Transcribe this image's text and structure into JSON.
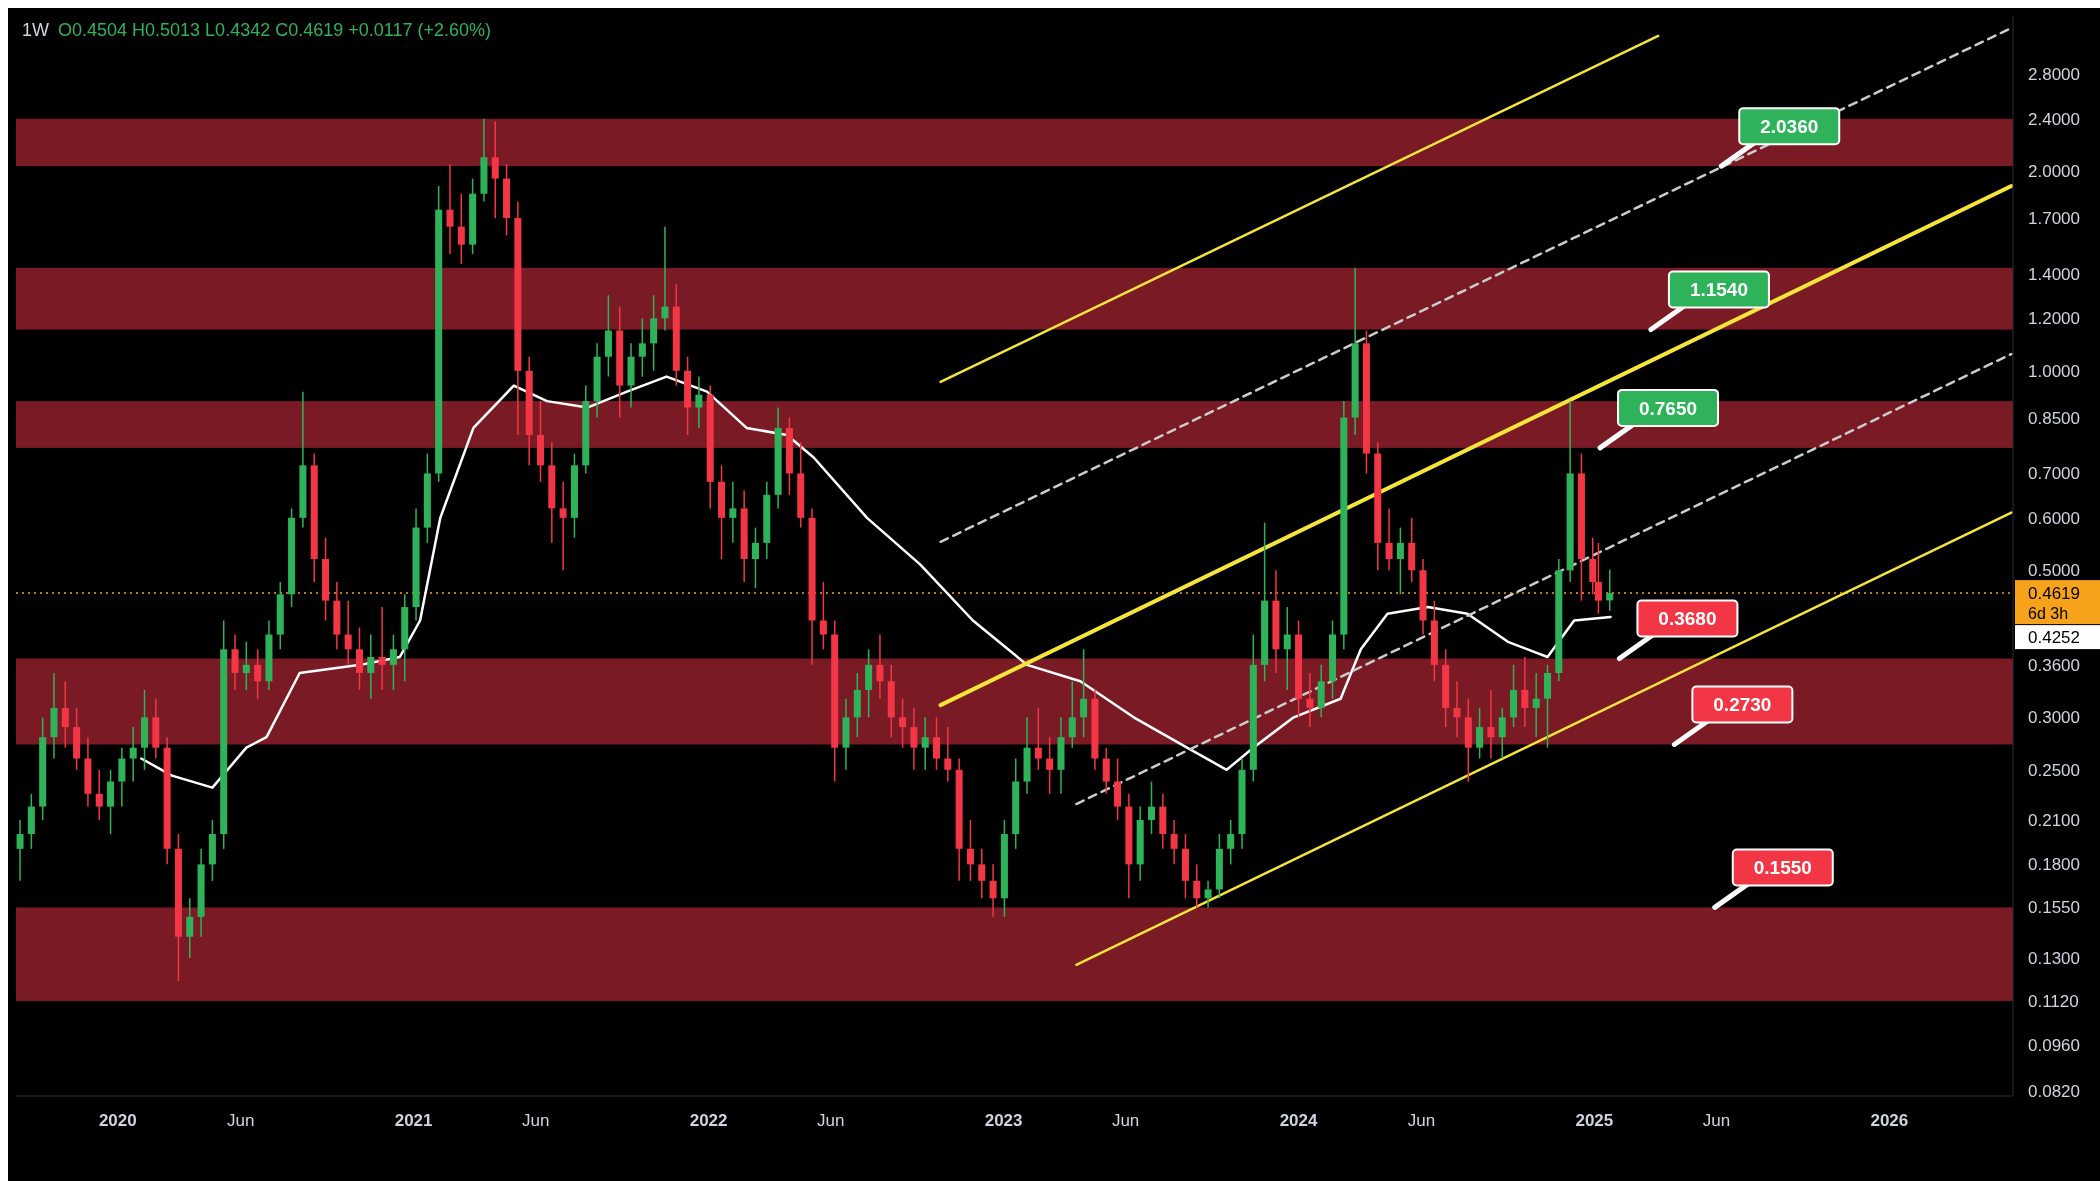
{
  "chart_data": {
    "type": "candlestick",
    "title": "1W",
    "subtitle": "O0.4504 H0.5013 L0.4342 C0.4619 +0.0117 (+2.60%)",
    "log": true,
    "grid": false,
    "colors": [
      "#2fb35a",
      "#2fb35a",
      "#2fb35a",
      "#2fb35a",
      "#f23645",
      "#f23645",
      "#f23645",
      "#f23645",
      "#2fb35a",
      "#2fb35a",
      "#2fb35a",
      "#2fb35a",
      "#f23645",
      "#f23645",
      "#f23645",
      "#2fb35a",
      "#2fb35a",
      "#2fb35a",
      "#2fb35a",
      "#f23645",
      "#2fb35a",
      "#f23645",
      "#2fb35a",
      "#2fb35a",
      "#2fb35a",
      "#2fb35a",
      "#f23645",
      "#f23645",
      "#f23645",
      "#f23645",
      "#f23645",
      "#2fb35a",
      "#f23645",
      "#2fb35a",
      "#2fb35a",
      "#2fb35a",
      "#2fb35a",
      "#2fb35a",
      "#f23645",
      "#f23645",
      "#2fb35a",
      "#2fb35a",
      "#f23645",
      "#f23645",
      "#f23645",
      "#f23645",
      "#f23645",
      "#f23645",
      "#f23645",
      "#2fb35a",
      "#2fb35a",
      "#2fb35a",
      "#2fb35a",
      "#f23645",
      "#2fb35a",
      "#2fb35a",
      "#2fb35a",
      "#2fb35a",
      "#f23645",
      "#f23645",
      "#2fb35a",
      "#f23645",
      "#f23645",
      "#2fb35a",
      "#f23645",
      "#2fb35a",
      "#2fb35a",
      "#2fb35a",
      "#f23645",
      "#f23645",
      "#f23645",
      "#f23645",
      "#f23645",
      "#2fb35a",
      "#2fb35a",
      "#2fb35a",
      "#f23645",
      "#f23645",
      "#f23645",
      "#f23645",
      "#2fb35a",
      "#f23645",
      "#f23645",
      "#f23645",
      "#f23645",
      "#f23645",
      "#f23645",
      "#2fb35a",
      "#2fb35a",
      "#2fb35a",
      "#f23645",
      "#f23645",
      "#2fb35a",
      "#2fb35a",
      "#2fb35a",
      "#f23645",
      "#f23645",
      "#f23645",
      "#f23645",
      "#2fb35a",
      "#2fb35a",
      "#f23645",
      "#f23645",
      "#f23645",
      "#f23645",
      "#2fb35a",
      "#2fb35a",
      "#2fb35a",
      "#2fb35a",
      "#2fb35a",
      "#2fb35a",
      "#f23645",
      "#2fb35a",
      "#f23645",
      "#f23645",
      "#2fb35a",
      "#2fb35a",
      "#2fb35a",
      "#2fb35a",
      "#f23645",
      "#f23645",
      "#f23645",
      "#2fb35a",
      "#f23645",
      "#f23645",
      "#f23645",
      "#f23645",
      "#f23645",
      "#f23645",
      "#2fb35a",
      "#f23645",
      "#2fb35a",
      "#2fb35a",
      "#f23645",
      "#2fb35a",
      "#2fb35a",
      "#2fb35a",
      "#2fb35a",
      "#f23645",
      "#f23645",
      "#f23645",
      "#2fb35a"
    ],
    "xlim": [
      "2019-08-28",
      "2026-06-03"
    ],
    "xticks": [
      {
        "value": "2020-01-01",
        "label": "2020"
      },
      {
        "value": "2020-06-01",
        "label": "Jun"
      },
      {
        "value": "2021-01-01",
        "label": "2021"
      },
      {
        "value": "2021-06-01",
        "label": "Jun"
      },
      {
        "value": "2022-01-01",
        "label": "2022"
      },
      {
        "value": "2022-06-01",
        "label": "Jun"
      },
      {
        "value": "2023-01-01",
        "label": "2023"
      },
      {
        "value": "2023-06-01",
        "label": "Jun"
      },
      {
        "value": "2024-01-01",
        "label": "2024"
      },
      {
        "value": "2024-06-01",
        "label": "Jun"
      },
      {
        "value": "2025-01-01",
        "label": "2025"
      },
      {
        "value": "2025-06-01",
        "label": "Jun"
      },
      {
        "value": "2026-01-01",
        "label": "2026"
      }
    ],
    "ylim": [
      0.0805,
      3.43
    ],
    "yticks": [
      {
        "value": 2.8,
        "label": "2.8000"
      },
      {
        "value": 2.4,
        "label": "2.4000"
      },
      {
        "value": 2.0,
        "label": "2.0000"
      },
      {
        "value": 1.7,
        "label": "1.7000"
      },
      {
        "value": 1.4,
        "label": "1.4000"
      },
      {
        "value": 1.2,
        "label": "1.2000"
      },
      {
        "value": 1.0,
        "label": "1.0000"
      },
      {
        "value": 0.85,
        "label": "0.8500"
      },
      {
        "value": 0.7,
        "label": "0.7000"
      },
      {
        "value": 0.6,
        "label": "0.6000"
      },
      {
        "value": 0.5,
        "label": "0.5000"
      },
      {
        "value": 0.36,
        "label": "0.3600"
      },
      {
        "value": 0.3,
        "label": "0.3000"
      },
      {
        "value": 0.25,
        "label": "0.2500"
      },
      {
        "value": 0.21,
        "label": "0.2100"
      },
      {
        "value": 0.18,
        "label": "0.1800"
      },
      {
        "value": 0.155,
        "label": "0.1550"
      },
      {
        "value": 0.13,
        "label": "0.1300"
      },
      {
        "value": 0.112,
        "label": "0.1120"
      },
      {
        "value": 0.096,
        "label": "0.0960"
      },
      {
        "value": 0.082,
        "label": "0.0820"
      }
    ],
    "x": [
      "2019-09-02",
      "2019-09-16",
      "2019-09-30",
      "2019-10-14",
      "2019-10-28",
      "2019-11-11",
      "2019-11-25",
      "2019-12-09",
      "2019-12-23",
      "2020-01-06",
      "2020-01-20",
      "2020-02-03",
      "2020-02-17",
      "2020-03-02",
      "2020-03-16",
      "2020-03-30",
      "2020-04-13",
      "2020-04-27",
      "2020-05-11",
      "2020-05-25",
      "2020-06-08",
      "2020-06-22",
      "2020-07-06",
      "2020-07-20",
      "2020-08-03",
      "2020-08-17",
      "2020-08-31",
      "2020-09-14",
      "2020-09-28",
      "2020-10-12",
      "2020-10-26",
      "2020-11-09",
      "2020-11-23",
      "2020-12-07",
      "2020-12-21",
      "2021-01-04",
      "2021-01-18",
      "2021-02-01",
      "2021-02-15",
      "2021-03-01",
      "2021-03-15",
      "2021-03-29",
      "2021-04-12",
      "2021-04-26",
      "2021-05-10",
      "2021-05-24",
      "2021-06-07",
      "2021-06-21",
      "2021-07-05",
      "2021-07-19",
      "2021-08-02",
      "2021-08-16",
      "2021-08-30",
      "2021-09-13",
      "2021-09-27",
      "2021-10-11",
      "2021-10-25",
      "2021-11-08",
      "2021-11-22",
      "2021-12-06",
      "2021-12-20",
      "2022-01-03",
      "2022-01-17",
      "2022-01-31",
      "2022-02-14",
      "2022-02-28",
      "2022-03-14",
      "2022-03-28",
      "2022-04-11",
      "2022-04-25",
      "2022-05-09",
      "2022-05-23",
      "2022-06-06",
      "2022-06-20",
      "2022-07-04",
      "2022-07-18",
      "2022-08-01",
      "2022-08-15",
      "2022-08-29",
      "2022-09-12",
      "2022-09-26",
      "2022-10-10",
      "2022-10-24",
      "2022-11-07",
      "2022-11-21",
      "2022-12-05",
      "2022-12-19",
      "2023-01-02",
      "2023-01-16",
      "2023-01-30",
      "2023-02-13",
      "2023-02-27",
      "2023-03-13",
      "2023-03-27",
      "2023-04-10",
      "2023-04-24",
      "2023-05-08",
      "2023-05-22",
      "2023-06-05",
      "2023-06-19",
      "2023-07-03",
      "2023-07-17",
      "2023-07-31",
      "2023-08-14",
      "2023-08-28",
      "2023-09-11",
      "2023-09-25",
      "2023-10-09",
      "2023-10-23",
      "2023-11-06",
      "2023-11-20",
      "2023-12-04",
      "2023-12-18",
      "2024-01-01",
      "2024-01-15",
      "2024-01-29",
      "2024-02-12",
      "2024-02-26",
      "2024-03-11",
      "2024-03-25",
      "2024-04-08",
      "2024-04-22",
      "2024-05-06",
      "2024-05-20",
      "2024-06-03",
      "2024-06-17",
      "2024-07-01",
      "2024-07-15",
      "2024-07-29",
      "2024-08-12",
      "2024-08-26",
      "2024-09-09",
      "2024-09-23",
      "2024-10-07",
      "2024-10-21",
      "2024-11-04",
      "2024-11-18",
      "2024-12-02",
      "2024-12-16",
      "2024-12-30",
      "2025-01-06",
      "2025-01-20"
    ],
    "ohlc": [
      [
        0.19,
        0.21,
        0.17,
        0.2
      ],
      [
        0.2,
        0.23,
        0.19,
        0.22
      ],
      [
        0.22,
        0.3,
        0.21,
        0.28
      ],
      [
        0.28,
        0.35,
        0.26,
        0.31
      ],
      [
        0.31,
        0.34,
        0.27,
        0.29
      ],
      [
        0.29,
        0.31,
        0.25,
        0.26
      ],
      [
        0.26,
        0.28,
        0.22,
        0.23
      ],
      [
        0.23,
        0.25,
        0.21,
        0.22
      ],
      [
        0.22,
        0.25,
        0.2,
        0.24
      ],
      [
        0.24,
        0.27,
        0.22,
        0.26
      ],
      [
        0.26,
        0.29,
        0.24,
        0.27
      ],
      [
        0.27,
        0.33,
        0.25,
        0.3
      ],
      [
        0.3,
        0.32,
        0.26,
        0.27
      ],
      [
        0.27,
        0.28,
        0.18,
        0.19
      ],
      [
        0.19,
        0.2,
        0.12,
        0.14
      ],
      [
        0.14,
        0.16,
        0.13,
        0.15
      ],
      [
        0.15,
        0.19,
        0.14,
        0.18
      ],
      [
        0.18,
        0.21,
        0.17,
        0.2
      ],
      [
        0.2,
        0.42,
        0.19,
        0.38
      ],
      [
        0.38,
        0.4,
        0.33,
        0.35
      ],
      [
        0.35,
        0.39,
        0.33,
        0.36
      ],
      [
        0.36,
        0.38,
        0.32,
        0.34
      ],
      [
        0.34,
        0.42,
        0.33,
        0.4
      ],
      [
        0.4,
        0.48,
        0.38,
        0.46
      ],
      [
        0.46,
        0.62,
        0.44,
        0.6
      ],
      [
        0.6,
        0.93,
        0.58,
        0.72
      ],
      [
        0.72,
        0.75,
        0.48,
        0.52
      ],
      [
        0.52,
        0.56,
        0.42,
        0.45
      ],
      [
        0.45,
        0.48,
        0.38,
        0.4
      ],
      [
        0.4,
        0.45,
        0.36,
        0.38
      ],
      [
        0.38,
        0.41,
        0.33,
        0.35
      ],
      [
        0.35,
        0.4,
        0.32,
        0.37
      ],
      [
        0.37,
        0.44,
        0.33,
        0.36
      ],
      [
        0.36,
        0.4,
        0.33,
        0.38
      ],
      [
        0.38,
        0.46,
        0.34,
        0.44
      ],
      [
        0.44,
        0.62,
        0.42,
        0.58
      ],
      [
        0.58,
        0.75,
        0.55,
        0.7
      ],
      [
        0.7,
        1.9,
        0.68,
        1.75
      ],
      [
        1.75,
        2.05,
        1.5,
        1.65
      ],
      [
        1.65,
        1.85,
        1.45,
        1.55
      ],
      [
        1.55,
        1.95,
        1.5,
        1.85
      ],
      [
        1.85,
        2.4,
        1.8,
        2.1
      ],
      [
        2.1,
        2.38,
        1.7,
        1.95
      ],
      [
        1.95,
        2.05,
        1.6,
        1.7
      ],
      [
        1.7,
        1.8,
        0.8,
        1.0
      ],
      [
        1.0,
        1.05,
        0.72,
        0.8
      ],
      [
        0.8,
        0.9,
        0.68,
        0.72
      ],
      [
        0.72,
        0.78,
        0.55,
        0.62
      ],
      [
        0.62,
        0.68,
        0.5,
        0.6
      ],
      [
        0.6,
        0.75,
        0.56,
        0.72
      ],
      [
        0.72,
        0.95,
        0.7,
        0.9
      ],
      [
        0.9,
        1.1,
        0.85,
        1.05
      ],
      [
        1.05,
        1.3,
        0.98,
        1.15
      ],
      [
        1.15,
        1.25,
        0.85,
        0.95
      ],
      [
        0.95,
        1.1,
        0.88,
        1.05
      ],
      [
        1.05,
        1.2,
        0.98,
        1.1
      ],
      [
        1.1,
        1.3,
        1.0,
        1.2
      ],
      [
        1.2,
        1.65,
        1.15,
        1.25
      ],
      [
        1.25,
        1.35,
        0.95,
        1.0
      ],
      [
        1.0,
        1.05,
        0.8,
        0.88
      ],
      [
        0.88,
        0.98,
        0.82,
        0.92
      ],
      [
        0.92,
        0.95,
        0.62,
        0.68
      ],
      [
        0.68,
        0.72,
        0.52,
        0.6
      ],
      [
        0.6,
        0.68,
        0.55,
        0.62
      ],
      [
        0.62,
        0.66,
        0.48,
        0.52
      ],
      [
        0.52,
        0.58,
        0.47,
        0.55
      ],
      [
        0.55,
        0.68,
        0.52,
        0.65
      ],
      [
        0.65,
        0.88,
        0.62,
        0.82
      ],
      [
        0.82,
        0.85,
        0.65,
        0.7
      ],
      [
        0.7,
        0.78,
        0.58,
        0.6
      ],
      [
        0.6,
        0.62,
        0.36,
        0.42
      ],
      [
        0.42,
        0.48,
        0.38,
        0.4
      ],
      [
        0.4,
        0.42,
        0.24,
        0.27
      ],
      [
        0.27,
        0.32,
        0.25,
        0.3
      ],
      [
        0.3,
        0.35,
        0.28,
        0.33
      ],
      [
        0.33,
        0.38,
        0.3,
        0.36
      ],
      [
        0.36,
        0.4,
        0.32,
        0.34
      ],
      [
        0.34,
        0.36,
        0.28,
        0.3
      ],
      [
        0.3,
        0.32,
        0.27,
        0.29
      ],
      [
        0.29,
        0.31,
        0.25,
        0.27
      ],
      [
        0.27,
        0.3,
        0.25,
        0.28
      ],
      [
        0.28,
        0.3,
        0.25,
        0.26
      ],
      [
        0.26,
        0.29,
        0.24,
        0.25
      ],
      [
        0.25,
        0.26,
        0.17,
        0.19
      ],
      [
        0.19,
        0.21,
        0.17,
        0.18
      ],
      [
        0.18,
        0.19,
        0.16,
        0.17
      ],
      [
        0.17,
        0.18,
        0.15,
        0.16
      ],
      [
        0.16,
        0.21,
        0.15,
        0.2
      ],
      [
        0.2,
        0.26,
        0.19,
        0.24
      ],
      [
        0.24,
        0.3,
        0.23,
        0.27
      ],
      [
        0.27,
        0.31,
        0.25,
        0.26
      ],
      [
        0.26,
        0.28,
        0.23,
        0.25
      ],
      [
        0.25,
        0.3,
        0.23,
        0.28
      ],
      [
        0.28,
        0.34,
        0.27,
        0.3
      ],
      [
        0.3,
        0.38,
        0.28,
        0.32
      ],
      [
        0.32,
        0.33,
        0.25,
        0.26
      ],
      [
        0.26,
        0.27,
        0.23,
        0.24
      ],
      [
        0.24,
        0.26,
        0.21,
        0.22
      ],
      [
        0.22,
        0.23,
        0.16,
        0.18
      ],
      [
        0.18,
        0.22,
        0.17,
        0.21
      ],
      [
        0.21,
        0.24,
        0.2,
        0.22
      ],
      [
        0.22,
        0.23,
        0.19,
        0.2
      ],
      [
        0.2,
        0.21,
        0.18,
        0.19
      ],
      [
        0.19,
        0.2,
        0.16,
        0.17
      ],
      [
        0.17,
        0.18,
        0.155,
        0.16
      ],
      [
        0.16,
        0.17,
        0.155,
        0.165
      ],
      [
        0.165,
        0.2,
        0.16,
        0.19
      ],
      [
        0.19,
        0.21,
        0.18,
        0.2
      ],
      [
        0.2,
        0.26,
        0.19,
        0.25
      ],
      [
        0.25,
        0.4,
        0.24,
        0.36
      ],
      [
        0.36,
        0.59,
        0.34,
        0.45
      ],
      [
        0.45,
        0.5,
        0.35,
        0.38
      ],
      [
        0.38,
        0.44,
        0.33,
        0.4
      ],
      [
        0.4,
        0.42,
        0.3,
        0.32
      ],
      [
        0.32,
        0.35,
        0.29,
        0.31
      ],
      [
        0.31,
        0.36,
        0.3,
        0.34
      ],
      [
        0.34,
        0.42,
        0.32,
        0.4
      ],
      [
        0.4,
        0.9,
        0.38,
        0.85
      ],
      [
        0.85,
        1.43,
        0.8,
        1.1
      ],
      [
        1.1,
        1.15,
        0.7,
        0.75
      ],
      [
        0.75,
        0.78,
        0.5,
        0.55
      ],
      [
        0.55,
        0.62,
        0.5,
        0.52
      ],
      [
        0.52,
        0.58,
        0.46,
        0.55
      ],
      [
        0.55,
        0.6,
        0.48,
        0.5
      ],
      [
        0.5,
        0.52,
        0.4,
        0.42
      ],
      [
        0.42,
        0.45,
        0.34,
        0.36
      ],
      [
        0.36,
        0.38,
        0.29,
        0.31
      ],
      [
        0.31,
        0.34,
        0.28,
        0.3
      ],
      [
        0.3,
        0.32,
        0.24,
        0.27
      ],
      [
        0.27,
        0.31,
        0.26,
        0.29
      ],
      [
        0.29,
        0.33,
        0.26,
        0.28
      ],
      [
        0.28,
        0.31,
        0.26,
        0.3
      ],
      [
        0.3,
        0.36,
        0.29,
        0.33
      ],
      [
        0.33,
        0.37,
        0.29,
        0.31
      ],
      [
        0.31,
        0.35,
        0.28,
        0.32
      ],
      [
        0.32,
        0.36,
        0.27,
        0.35
      ],
      [
        0.35,
        0.52,
        0.34,
        0.5
      ],
      [
        0.5,
        0.9,
        0.48,
        0.7
      ],
      [
        0.7,
        0.75,
        0.45,
        0.52
      ],
      [
        0.52,
        0.56,
        0.46,
        0.48
      ],
      [
        0.48,
        0.55,
        0.43,
        0.45
      ],
      [
        0.4504,
        0.5013,
        0.4342,
        0.4619
      ]
    ],
    "series": [
      {
        "type": "line",
        "color": "#ffffff",
        "x": [
          "2020-01-30",
          "2020-03-08",
          "2020-04-27",
          "2020-06-08",
          "2020-07-03",
          "2020-08-13",
          "2020-10-27",
          "2020-12-15",
          "2021-01-09",
          "2021-02-03",
          "2021-03-16",
          "2021-05-05",
          "2021-06-15",
          "2021-08-04",
          "2021-09-22",
          "2021-11-10",
          "2021-12-30",
          "2022-02-17",
          "2022-04-08",
          "2022-05-11",
          "2022-07-16",
          "2022-09-20",
          "2022-11-24",
          "2023-01-30",
          "2023-04-06",
          "2023-06-11",
          "2023-08-16",
          "2023-10-04",
          "2023-11-06",
          "2023-12-26",
          "2024-02-22",
          "2024-03-18",
          "2024-04-20",
          "2024-06-09",
          "2024-07-28",
          "2024-09-16",
          "2024-11-04",
          "2024-12-07",
          "2025-01-21"
        ],
        "values": [
          0.26,
          0.245,
          0.235,
          0.27,
          0.28,
          0.35,
          0.36,
          0.37,
          0.42,
          0.6,
          0.82,
          0.95,
          0.9,
          0.88,
          0.93,
          0.98,
          0.93,
          0.82,
          0.8,
          0.74,
          0.6,
          0.51,
          0.42,
          0.36,
          0.34,
          0.3,
          0.27,
          0.25,
          0.27,
          0.3,
          0.32,
          0.38,
          0.43,
          0.44,
          0.43,
          0.39,
          0.37,
          0.42,
          0.4252
        ]
      },
      {
        "type": "line",
        "color": "#f5e53b",
        "x": [
          "2022-10-15",
          "2025-03-21"
        ],
        "values": [
          0.962,
          3.2
        ]
      },
      {
        "type": "line",
        "color": "#f5e53b",
        "x": [
          "2022-10-15",
          "2026-06-01"
        ],
        "values": [
          0.313,
          1.9
        ]
      },
      {
        "type": "line",
        "color": "#f5e53b",
        "x": [
          "2023-04-01",
          "2026-06-01"
        ],
        "values": [
          0.127,
          0.611
        ]
      },
      {
        "type": "line",
        "color": "#cccccc",
        "line_style": "dashed",
        "x": [
          "2022-10-15",
          "2026-06-01"
        ],
        "values": [
          0.552,
          3.29
        ]
      },
      {
        "type": "line",
        "color": "#cccccc",
        "line_style": "dashed",
        "x": [
          "2023-04-01",
          "2026-06-01"
        ],
        "values": [
          0.222,
          1.06
        ]
      }
    ],
    "bands": [
      {
        "axis": "y",
        "from": 2.036,
        "to": 2.4,
        "color": "#7a1a24"
      },
      {
        "axis": "y",
        "from": 1.154,
        "to": 1.43,
        "color": "#7a1a24"
      },
      {
        "axis": "y",
        "from": 0.765,
        "to": 0.9,
        "color": "#7a1a24"
      },
      {
        "axis": "y",
        "from": 0.273,
        "to": 0.368,
        "color": "#7a1a24"
      },
      {
        "axis": "y",
        "from": 0.112,
        "to": 0.155,
        "color": "#7a1a24"
      }
    ],
    "ref_lines": [
      {
        "axis": "y",
        "value": 0.4619,
        "label": "0.4619",
        "color": "#f7a21b",
        "line_style": "dotted"
      }
    ],
    "annotations": [
      {
        "text": "2.0360",
        "x": "2025-06-07",
        "y": 2.036
      },
      {
        "text": "1.1540",
        "x": "2025-03-12",
        "y": 1.154
      },
      {
        "text": "0.7650",
        "x": "2025-01-08",
        "y": 0.765
      },
      {
        "text": "0.3680",
        "x": "2025-02-01",
        "y": 0.368
      },
      {
        "text": "0.2730",
        "x": "2025-04-10",
        "y": 0.273
      },
      {
        "text": "0.1550",
        "x": "2025-05-30",
        "y": 0.155
      },
      "6d 3h",
      "0.4252"
    ]
  }
}
